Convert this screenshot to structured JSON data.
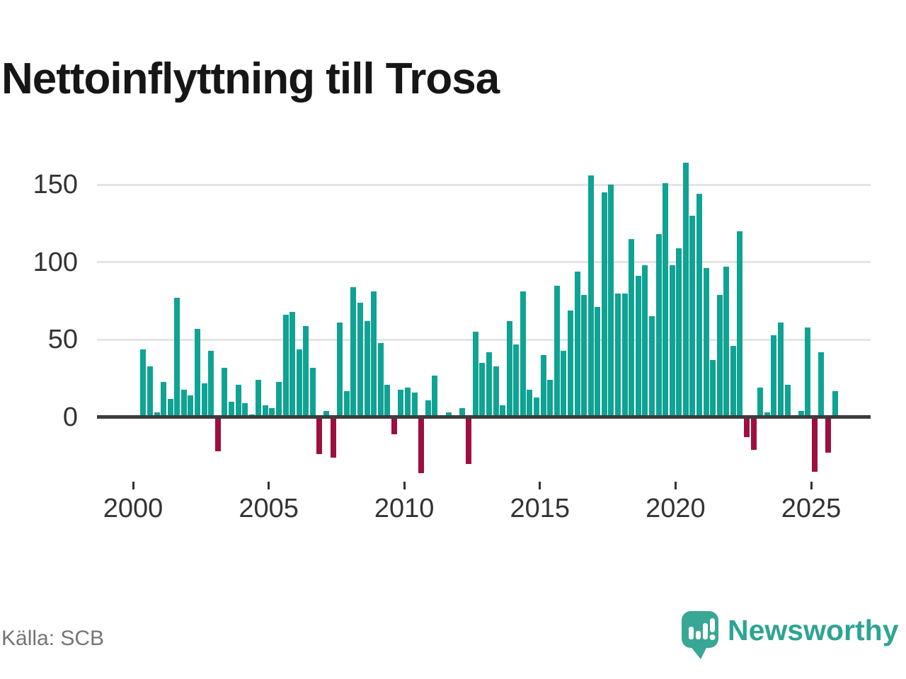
{
  "title": "Nettoinflyttning till Trosa",
  "source": "Källa: SCB",
  "brand": {
    "name": "Newsworthy"
  },
  "colors": {
    "positive": "#0FA394",
    "negative": "#9E0F3F",
    "axis": "#3d3d3d",
    "grid": "#e4e4e4",
    "tick_text": "#333333",
    "title_text": "#161616",
    "source_text": "#757575",
    "brand_teal": "#2EA493"
  },
  "chart_data": {
    "type": "bar",
    "title": "Nettoinflyttning till Trosa",
    "frequency": "quarterly",
    "start_year": 2000,
    "start_quarter": 2,
    "end_year": 2025,
    "end_quarter": 4,
    "x_tick_years": [
      2000,
      2005,
      2010,
      2015,
      2020,
      2025
    ],
    "x_tick_labels": [
      "2000",
      "2005",
      "2010",
      "2015",
      "2020",
      "2025"
    ],
    "y_ticks": [
      0,
      50,
      100,
      150
    ],
    "ylim": [
      -40,
      170
    ],
    "grid": true,
    "legend": false,
    "values": [
      44,
      33,
      3,
      23,
      12,
      77,
      18,
      14,
      57,
      22,
      43,
      -21,
      32,
      10,
      21,
      9,
      2,
      24,
      8,
      6,
      23,
      66,
      68,
      44,
      59,
      32,
      -23,
      4,
      -25,
      61,
      17,
      84,
      74,
      62,
      81,
      48,
      21,
      -10,
      18,
      19,
      16,
      -35,
      11,
      27,
      0,
      3,
      0,
      6,
      -29,
      55,
      35,
      42,
      33,
      8,
      62,
      47,
      81,
      18,
      13,
      40,
      24,
      85,
      43,
      69,
      94,
      79,
      156,
      71,
      145,
      150,
      80,
      80,
      115,
      91,
      98,
      65,
      118,
      151,
      98,
      109,
      164,
      130,
      144,
      96,
      37,
      79,
      97,
      46,
      120,
      -12,
      -20,
      19,
      3,
      53,
      61,
      21,
      0,
      4,
      58,
      -34,
      42,
      -22,
      17
    ]
  }
}
